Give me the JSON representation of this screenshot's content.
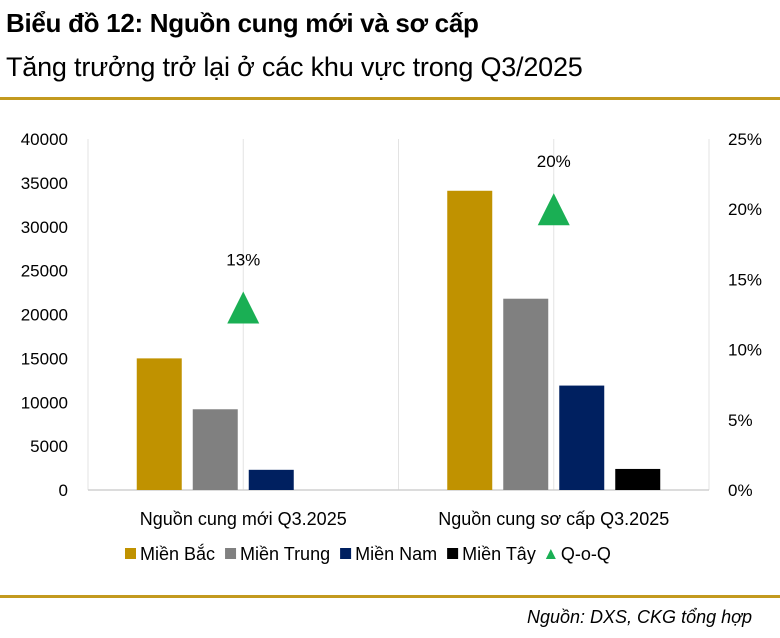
{
  "header": {
    "title": "Biểu đồ 12: Nguồn cung mới và sơ cấp",
    "subtitle": "Tăng trưởng trở lại ở các khu vực trong Q3/2025"
  },
  "footer": {
    "source": "Nguồn: DXS, CKG tổng hợp"
  },
  "colors": {
    "accent": "#C39A1F"
  },
  "chart_data": {
    "type": "bar",
    "categories": [
      "Nguồn cung mới Q3.2025",
      "Nguồn cung sơ cấp Q3.2025"
    ],
    "series": [
      {
        "name": "Miền Bắc",
        "color": "#C09200",
        "values": [
          15000,
          34100
        ]
      },
      {
        "name": "Miền Trung",
        "color": "#808080",
        "values": [
          9200,
          21800
        ]
      },
      {
        "name": "Miền Nam",
        "color": "#002060",
        "values": [
          2300,
          11900
        ]
      },
      {
        "name": "Miền Tây",
        "color": "#000000",
        "values": [
          0,
          2400
        ]
      }
    ],
    "line_series": {
      "name": "Q-o-Q",
      "marker": "triangle",
      "color": "#1AAF54",
      "axis": "right",
      "values": [
        0.13,
        0.2
      ],
      "labels": [
        "13%",
        "20%"
      ]
    },
    "y_left": {
      "range": [
        0,
        40000
      ],
      "ticks": [
        "0",
        "5000",
        "10000",
        "15000",
        "20000",
        "25000",
        "30000",
        "35000",
        "40000"
      ]
    },
    "y_right": {
      "range": [
        0,
        0.25
      ],
      "ticks": [
        "0%",
        "5%",
        "10%",
        "15%",
        "20%",
        "25%"
      ]
    },
    "grid": "vertical",
    "legend": "bottom"
  }
}
